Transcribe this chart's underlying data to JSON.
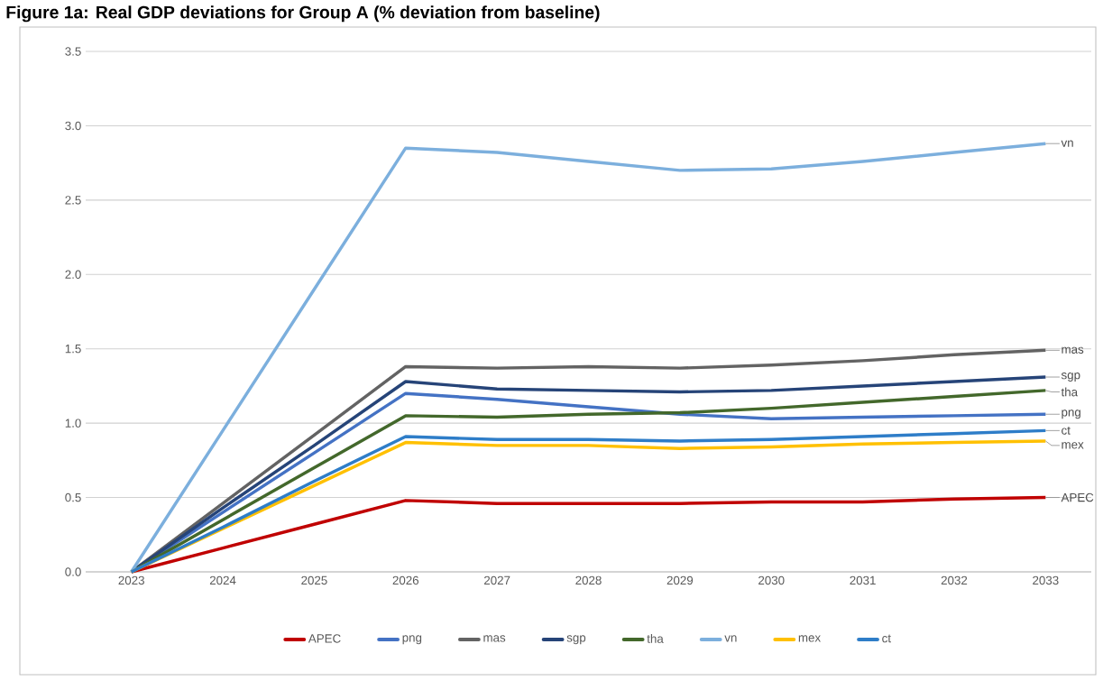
{
  "chart_data": {
    "type": "line",
    "title": "Figure 1a: Real GDP deviations for Group A (% deviation from baseline)",
    "x": [
      2023,
      2024,
      2025,
      2026,
      2027,
      2028,
      2029,
      2030,
      2031,
      2032,
      2033
    ],
    "xlim": [
      2022.5,
      2033.5
    ],
    "xticks": [
      2023,
      2024,
      2025,
      2026,
      2027,
      2028,
      2029,
      2030,
      2031,
      2032,
      2033
    ],
    "ylim": [
      0,
      3.5
    ],
    "yticks": [
      {
        "value": 0,
        "label": "0.0"
      },
      {
        "value": 0.5,
        "label": "0.5"
      },
      {
        "value": 1,
        "label": "1.0"
      },
      {
        "value": 1.5,
        "label": "1.5"
      },
      {
        "value": 2,
        "label": "2.0"
      },
      {
        "value": 2.5,
        "label": "2.5"
      },
      {
        "value": 3,
        "label": "3.0"
      },
      {
        "value": 3.5,
        "label": "3.5"
      }
    ],
    "grid": "y",
    "legend": "bottom",
    "series": [
      {
        "name": "APEC",
        "color": "#c00000",
        "values": [
          0,
          0.16,
          0.32,
          0.48,
          0.46,
          0.46,
          0.46,
          0.47,
          0.47,
          0.49,
          0.5
        ]
      },
      {
        "name": "png",
        "color": "#4472c4",
        "values": [
          0,
          0.4,
          0.8,
          1.2,
          1.16,
          1.11,
          1.06,
          1.03,
          1.04,
          1.05,
          1.06
        ]
      },
      {
        "name": "mas",
        "color": "#636363",
        "values": [
          0,
          0.46,
          0.92,
          1.38,
          1.37,
          1.38,
          1.37,
          1.39,
          1.42,
          1.46,
          1.49
        ]
      },
      {
        "name": "sgp",
        "color": "#264478",
        "values": [
          0,
          0.43,
          0.85,
          1.28,
          1.23,
          1.22,
          1.21,
          1.22,
          1.25,
          1.28,
          1.31
        ]
      },
      {
        "name": "tha",
        "color": "#43682b",
        "values": [
          0,
          0.35,
          0.7,
          1.05,
          1.04,
          1.06,
          1.07,
          1.1,
          1.14,
          1.18,
          1.22
        ]
      },
      {
        "name": "vn",
        "color": "#7cafdd",
        "values": [
          0,
          0.95,
          1.9,
          2.85,
          2.82,
          2.76,
          2.7,
          2.71,
          2.76,
          2.82,
          2.88
        ]
      },
      {
        "name": "mex",
        "color": "#ffc000",
        "values": [
          0,
          0.29,
          0.58,
          0.87,
          0.85,
          0.85,
          0.83,
          0.84,
          0.86,
          0.87,
          0.88
        ]
      },
      {
        "name": "ct",
        "color": "#2e7dc8",
        "values": [
          0,
          0.3,
          0.61,
          0.91,
          0.89,
          0.89,
          0.88,
          0.89,
          0.91,
          0.93,
          0.95
        ]
      }
    ]
  }
}
